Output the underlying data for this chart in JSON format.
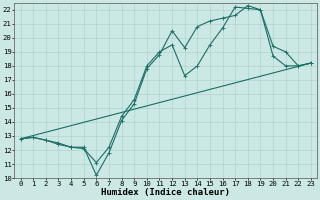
{
  "xlabel": "Humidex (Indice chaleur)",
  "xlim": [
    -0.5,
    23.5
  ],
  "ylim": [
    10,
    22.5
  ],
  "xticks": [
    0,
    1,
    2,
    3,
    4,
    5,
    6,
    7,
    8,
    9,
    10,
    11,
    12,
    13,
    14,
    15,
    16,
    17,
    18,
    19,
    20,
    21,
    22,
    23
  ],
  "yticks": [
    10,
    11,
    12,
    13,
    14,
    15,
    16,
    17,
    18,
    19,
    20,
    21,
    22
  ],
  "background_color": "#cce8e5",
  "grid_color": "#aed4d0",
  "line_color": "#1a6e64",
  "line1_x": [
    0,
    1,
    2,
    3,
    4,
    5,
    6,
    7,
    8,
    9,
    10,
    11,
    12,
    13,
    14,
    15,
    16,
    17,
    18,
    19,
    20,
    21,
    22,
    23
  ],
  "line1_y": [
    12.8,
    12.9,
    12.7,
    12.4,
    12.2,
    12.1,
    11.1,
    12.2,
    14.4,
    15.6,
    18.0,
    19.0,
    19.5,
    17.3,
    18.0,
    19.5,
    20.7,
    22.2,
    22.1,
    22.0,
    18.7,
    18.0,
    18.0,
    18.2
  ],
  "line2_x": [
    0,
    1,
    2,
    3,
    4,
    5,
    6,
    7,
    8,
    9,
    10,
    11,
    12,
    13,
    14,
    15,
    16,
    17,
    18,
    19,
    20,
    21,
    22,
    23
  ],
  "line2_y": [
    12.8,
    12.9,
    12.7,
    12.5,
    12.2,
    12.2,
    10.2,
    11.8,
    14.1,
    15.3,
    17.8,
    18.8,
    20.5,
    19.3,
    20.8,
    21.2,
    21.4,
    21.6,
    22.3,
    22.0,
    19.4,
    19.0,
    18.0,
    18.2
  ],
  "line3_x": [
    0,
    23
  ],
  "line3_y": [
    12.8,
    18.2
  ],
  "marker_size": 2.5,
  "line_width": 0.8,
  "font_size": 6.5,
  "tick_font_size": 5.2
}
